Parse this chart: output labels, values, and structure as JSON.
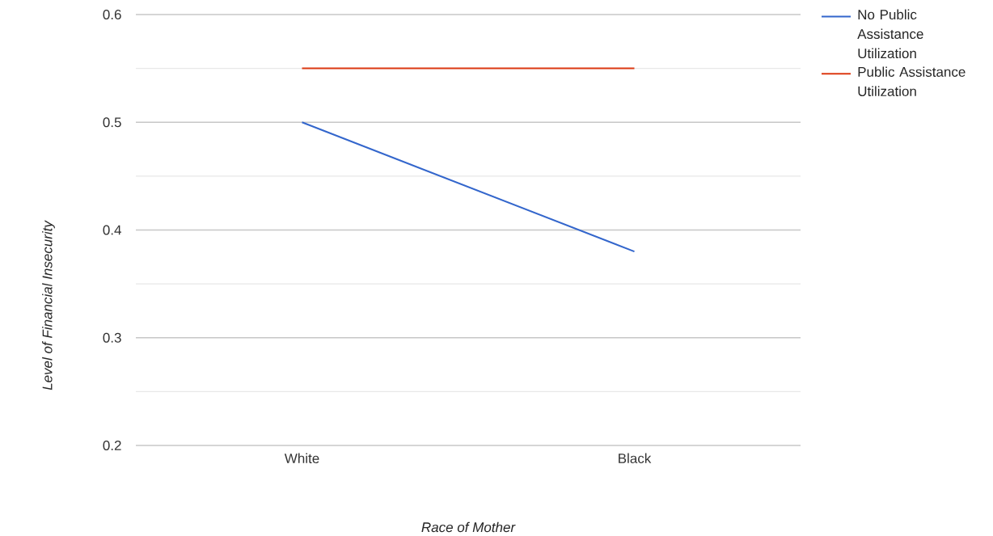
{
  "chart_data": {
    "type": "line",
    "xlabel": "Race of Mother",
    "ylabel": "Level of Financial Insecurity",
    "categories": [
      "White",
      "Black"
    ],
    "series": [
      {
        "name": "No Public Assistance Utilization",
        "color": "#3366cc",
        "values": [
          0.5,
          0.38
        ]
      },
      {
        "name": "Public Assistance Utilization",
        "color": "#dc3912",
        "values": [
          0.55,
          0.55
        ]
      }
    ],
    "ylim": [
      0.2,
      0.6
    ],
    "yticks": [
      0.2,
      {
        "value": 0.25,
        "label": null
      },
      0.3,
      {
        "value": 0.35,
        "label": null
      },
      0.4,
      {
        "value": 0.45,
        "label": null
      },
      0.5,
      {
        "value": 0.55,
        "label": null
      },
      0.6
    ],
    "grid": "y",
    "legend": "top right",
    "marker": "none",
    "line_style": "solid"
  }
}
